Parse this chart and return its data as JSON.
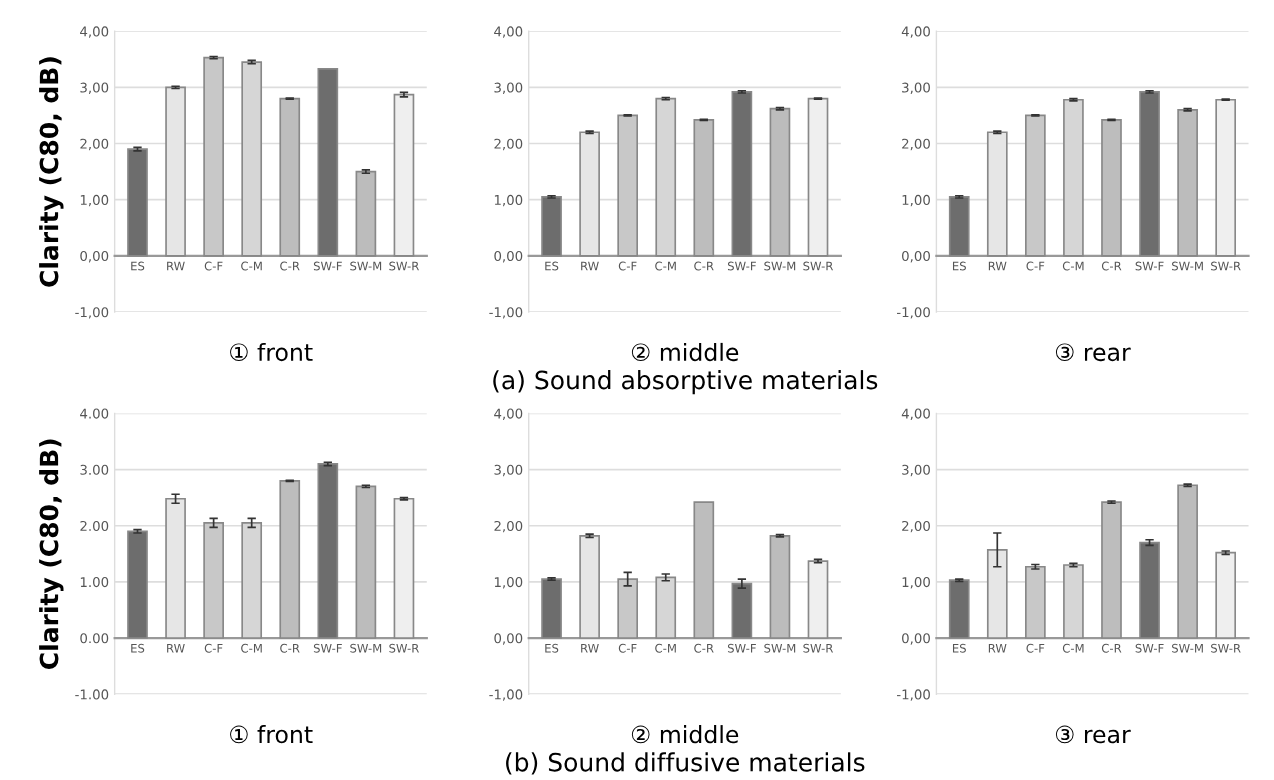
{
  "chart_data": [
    {
      "type": "bar",
      "xlabel": "① front",
      "ylabel": "Clarity (C80, dB)",
      "categories": [
        "ES",
        "RW",
        "C-F",
        "C-M",
        "C-R",
        "SW-F",
        "SW-M",
        "SW-R"
      ],
      "values": [
        1.9,
        3.0,
        3.53,
        3.45,
        2.8,
        3.33,
        1.5,
        2.87
      ],
      "errors": [
        0.03,
        0.02,
        0.02,
        0.03,
        0.01,
        null,
        0.03,
        0.04
      ],
      "colors": [
        "#6d6d6d",
        "#e6e6e6",
        "#c8c8c8",
        "#d6d6d6",
        "#bdbdbd",
        "#6d6d6d",
        "#bcbcbc",
        "#efefef"
      ],
      "ylim": [
        -1,
        4
      ],
      "yticks": [
        {
          "value": -1,
          "label": "-1,00"
        },
        {
          "value": 0,
          "label": "0,00"
        },
        {
          "value": 1,
          "label": "1,00"
        },
        {
          "value": 2,
          "label": "2,00"
        },
        {
          "value": 3,
          "label": "3,00"
        },
        {
          "value": 4,
          "label": "4,00"
        }
      ],
      "grid": "y"
    },
    {
      "type": "bar",
      "xlabel": "② middle",
      "annotations": [
        "(a) Sound absorptive materials"
      ],
      "categories": [
        "ES",
        "RW",
        "C-F",
        "C-M",
        "C-R",
        "SW-F",
        "SW-M",
        "SW-R"
      ],
      "values": [
        1.05,
        2.2,
        2.5,
        2.8,
        2.42,
        2.92,
        2.62,
        2.8
      ],
      "errors": [
        0.02,
        0.02,
        0.01,
        0.02,
        0.01,
        0.02,
        0.02,
        0.01
      ],
      "colors": [
        "#6d6d6d",
        "#e6e6e6",
        "#c8c8c8",
        "#d6d6d6",
        "#bdbdbd",
        "#6d6d6d",
        "#bcbcbc",
        "#efefef"
      ],
      "ylim": [
        -1,
        4
      ],
      "yticks": [
        {
          "value": -1,
          "label": "-1,00"
        },
        {
          "value": 0,
          "label": "0,00"
        },
        {
          "value": 1,
          "label": "1,00"
        },
        {
          "value": 2,
          "label": "2,00"
        },
        {
          "value": 3,
          "label": "3,00"
        },
        {
          "value": 4,
          "label": "4,00"
        }
      ],
      "grid": "y"
    },
    {
      "type": "bar",
      "xlabel": "③ rear",
      "categories": [
        "ES",
        "RW",
        "C-F",
        "C-M",
        "C-R",
        "SW-F",
        "SW-M",
        "SW-R"
      ],
      "values": [
        1.05,
        2.2,
        2.5,
        2.78,
        2.42,
        2.92,
        2.6,
        2.78
      ],
      "errors": [
        0.02,
        0.02,
        0.01,
        0.02,
        0.01,
        0.02,
        0.02,
        0.01
      ],
      "colors": [
        "#6d6d6d",
        "#e6e6e6",
        "#c8c8c8",
        "#d6d6d6",
        "#bdbdbd",
        "#6d6d6d",
        "#bcbcbc",
        "#efefef"
      ],
      "ylim": [
        -1,
        4
      ],
      "yticks": [
        {
          "value": -1,
          "label": "-1,00"
        },
        {
          "value": 0,
          "label": "0,00"
        },
        {
          "value": 1,
          "label": "1,00"
        },
        {
          "value": 2,
          "label": "2,00"
        },
        {
          "value": 3,
          "label": "3,00"
        },
        {
          "value": 4,
          "label": "4,00"
        }
      ],
      "grid": "y"
    },
    {
      "type": "bar",
      "xlabel": "① front",
      "ylabel": "Clarity (C80, dB)",
      "categories": [
        "ES",
        "RW",
        "C-F",
        "C-M",
        "C-R",
        "SW-F",
        "SW-M",
        "SW-R"
      ],
      "values": [
        1.9,
        2.48,
        2.05,
        2.05,
        2.8,
        3.1,
        2.7,
        2.48
      ],
      "errors": [
        0.03,
        0.08,
        0.08,
        0.08,
        0.01,
        0.03,
        0.02,
        0.02
      ],
      "colors": [
        "#6d6d6d",
        "#e6e6e6",
        "#c8c8c8",
        "#d6d6d6",
        "#bdbdbd",
        "#6d6d6d",
        "#bcbcbc",
        "#efefef"
      ],
      "ylim": [
        -1,
        4
      ],
      "yticks": [
        {
          "value": -1,
          "label": "-1.00"
        },
        {
          "value": 0,
          "label": "0.00"
        },
        {
          "value": 1,
          "label": "1.00"
        },
        {
          "value": 2,
          "label": "2.00"
        },
        {
          "value": 3,
          "label": "3.00"
        },
        {
          "value": 4,
          "label": "4.00"
        }
      ],
      "grid": "y"
    },
    {
      "type": "bar",
      "xlabel": "② middle",
      "annotations": [
        "(b) Sound diffusive materials"
      ],
      "categories": [
        "ES",
        "RW",
        "C-F",
        "C-M",
        "C-R",
        "SW-F",
        "SW-M",
        "SW-R"
      ],
      "values": [
        1.05,
        1.82,
        1.05,
        1.08,
        2.42,
        0.97,
        1.82,
        1.37
      ],
      "errors": [
        0.02,
        0.03,
        0.12,
        0.06,
        null,
        0.08,
        0.02,
        0.03
      ],
      "colors": [
        "#6d6d6d",
        "#e6e6e6",
        "#c8c8c8",
        "#d6d6d6",
        "#bdbdbd",
        "#6d6d6d",
        "#bcbcbc",
        "#efefef"
      ],
      "ylim": [
        -1,
        4
      ],
      "yticks": [
        {
          "value": -1,
          "label": "-1,00"
        },
        {
          "value": 0,
          "label": "0,00"
        },
        {
          "value": 1,
          "label": "1,00"
        },
        {
          "value": 2,
          "label": "2,00"
        },
        {
          "value": 3,
          "label": "3,00"
        },
        {
          "value": 4,
          "label": "4,00"
        }
      ],
      "grid": "y"
    },
    {
      "type": "bar",
      "xlabel": "③ rear",
      "categories": [
        "ES",
        "RW",
        "C-F",
        "C-M",
        "C-R",
        "SW-F",
        "SW-M",
        "SW-R"
      ],
      "values": [
        1.03,
        1.57,
        1.27,
        1.3,
        2.42,
        1.7,
        2.72,
        1.52
      ],
      "errors": [
        0.02,
        0.3,
        0.04,
        0.03,
        0.02,
        0.05,
        0.02,
        0.03
      ],
      "colors": [
        "#6d6d6d",
        "#e6e6e6",
        "#c8c8c8",
        "#d6d6d6",
        "#bdbdbd",
        "#6d6d6d",
        "#bcbcbc",
        "#efefef"
      ],
      "ylim": [
        -1,
        4
      ],
      "yticks": [
        {
          "value": -1,
          "label": "-1,00"
        },
        {
          "value": 0,
          "label": "0,00"
        },
        {
          "value": 1,
          "label": "1,00"
        },
        {
          "value": 2,
          "label": "2,00"
        },
        {
          "value": 3,
          "label": "3,00"
        },
        {
          "value": 4,
          "label": "4,00"
        }
      ],
      "grid": "y"
    }
  ]
}
